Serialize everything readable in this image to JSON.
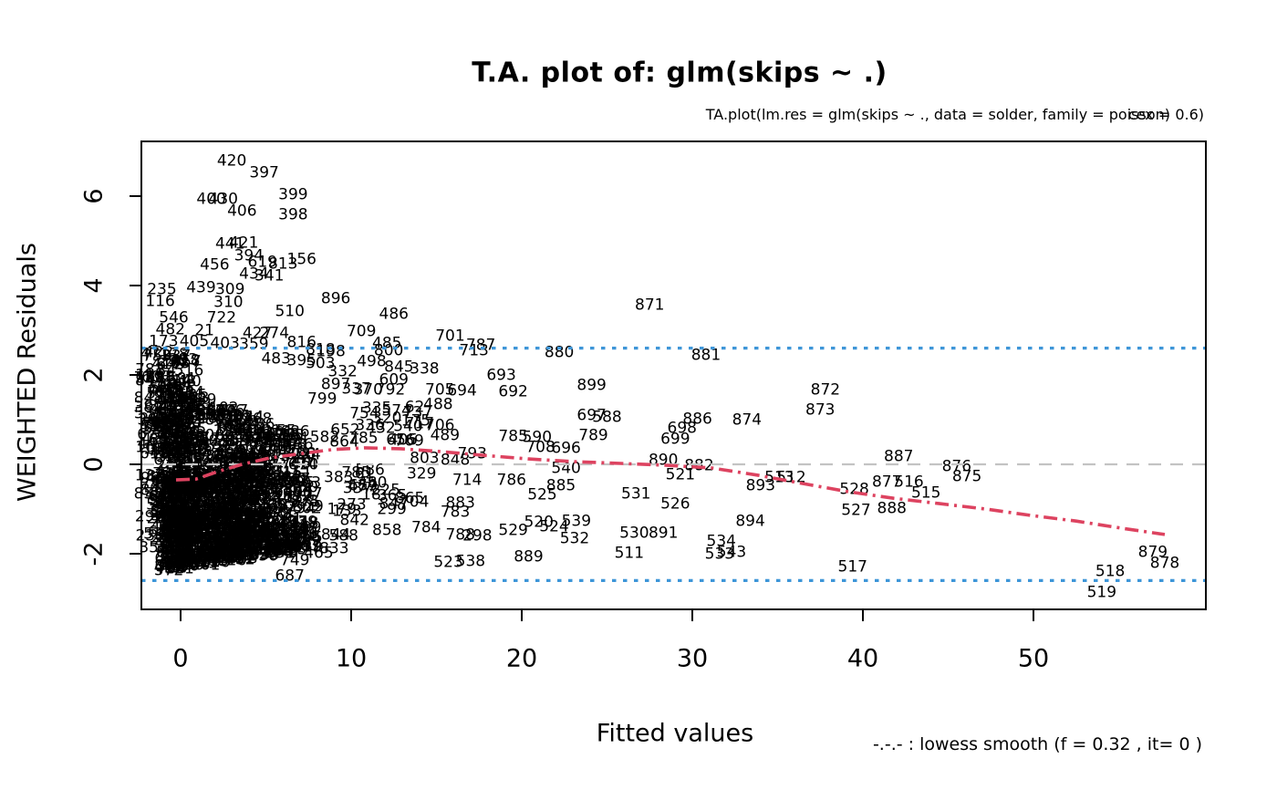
{
  "title": "T.A. plot of:  glm(skips ~ .)",
  "subtitle": {
    "main": "TA.plot(lm.res = glm(skips ~ ., data = solder, family = poisson)",
    "overlay": "cex = 0.6)"
  },
  "axes": {
    "xlabel": "Fitted values",
    "ylabel": "WEIGHTED Residuals",
    "xticks": [
      0,
      10,
      20,
      30,
      40,
      50
    ],
    "yticks": [
      -2,
      0,
      2,
      4,
      6
    ]
  },
  "legend": {
    "text": "-.-.- : lowess smooth (f = 0.32 , it= 0 )"
  },
  "colors": {
    "lowess": "#dd4360",
    "band_lines": "#3e96d8",
    "zero_line": "#c3c3c3",
    "points": "#000000"
  },
  "chart_data": {
    "type": "scatter",
    "title": "T.A. plot of:  glm(skips ~ .)",
    "xlabel": "Fitted values",
    "ylabel": "WEIGHTED Residuals",
    "xlim": [
      -2.3,
      60.2
    ],
    "ylim": [
      -3.25,
      7.25
    ],
    "reference_lines": {
      "zero": 0,
      "upper_band": 2.6,
      "lower_band": -2.6
    },
    "lowess_f": "0.32",
    "lowess_it": "0",
    "lowess": [
      [
        -0.27,
        -0.35
      ],
      [
        0.9,
        -0.33
      ],
      [
        2.2,
        -0.16
      ],
      [
        3.6,
        0.0
      ],
      [
        5.2,
        0.14
      ],
      [
        7.1,
        0.24
      ],
      [
        8.9,
        0.33
      ],
      [
        10.8,
        0.37
      ],
      [
        12.9,
        0.35
      ],
      [
        15.1,
        0.29
      ],
      [
        17.8,
        0.2
      ],
      [
        20.4,
        0.12
      ],
      [
        23.1,
        0.06
      ],
      [
        25.8,
        0.02
      ],
      [
        28.4,
        -0.02
      ],
      [
        31.1,
        -0.08
      ],
      [
        33.8,
        -0.24
      ],
      [
        36.5,
        -0.43
      ],
      [
        39.1,
        -0.61
      ],
      [
        41.8,
        -0.76
      ],
      [
        44.5,
        -0.88
      ],
      [
        47.2,
        -1.0
      ],
      [
        49.8,
        -1.14
      ],
      [
        52.5,
        -1.27
      ],
      [
        55.2,
        -1.43
      ],
      [
        57.7,
        -1.57
      ]
    ],
    "points": [
      [
        "420",
        3.0,
        6.78
      ],
      [
        "397",
        4.9,
        6.51
      ],
      [
        "399",
        6.6,
        6.02
      ],
      [
        "400",
        1.8,
        5.92
      ],
      [
        "430",
        2.5,
        5.92
      ],
      [
        "406",
        3.6,
        5.65
      ],
      [
        "398",
        6.6,
        5.57
      ],
      [
        "441",
        2.9,
        4.92
      ],
      [
        "421",
        3.7,
        4.94
      ],
      [
        "394",
        4.0,
        4.65
      ],
      [
        "456",
        2.0,
        4.45
      ],
      [
        "619",
        4.8,
        4.51
      ],
      [
        "813",
        6.0,
        4.47
      ],
      [
        "156",
        7.1,
        4.57
      ],
      [
        "434",
        4.3,
        4.24
      ],
      [
        "341",
        5.2,
        4.2
      ],
      [
        "235",
        -1.1,
        3.9
      ],
      [
        "439",
        1.2,
        3.94
      ],
      [
        "309",
        2.9,
        3.9
      ],
      [
        "116",
        -1.2,
        3.63
      ],
      [
        "310",
        2.8,
        3.61
      ],
      [
        "896",
        9.1,
        3.69
      ],
      [
        "546",
        -0.4,
        3.27
      ],
      [
        "722",
        2.4,
        3.27
      ],
      [
        "510",
        6.4,
        3.41
      ],
      [
        "486",
        12.5,
        3.35
      ],
      [
        "482",
        -0.6,
        3.0
      ],
      [
        "21",
        1.4,
        2.98
      ],
      [
        "427",
        4.5,
        2.92
      ],
      [
        "274",
        5.5,
        2.92
      ],
      [
        "173",
        -1.0,
        2.73
      ],
      [
        "405",
        0.8,
        2.73
      ],
      [
        "403",
        2.6,
        2.69
      ],
      [
        "359",
        4.3,
        2.67
      ],
      [
        "816",
        7.1,
        2.71
      ],
      [
        "709",
        10.6,
        2.96
      ],
      [
        "485",
        12.1,
        2.69
      ],
      [
        "701",
        15.8,
        2.86
      ],
      [
        "787",
        17.6,
        2.65
      ],
      [
        "713",
        17.2,
        2.53
      ],
      [
        "880",
        22.2,
        2.49
      ],
      [
        "871",
        27.5,
        3.55
      ],
      [
        "881",
        30.8,
        2.43
      ],
      [
        "818",
        8.2,
        2.55
      ],
      [
        "198",
        8.8,
        2.51
      ],
      [
        "800",
        12.2,
        2.53
      ],
      [
        "471",
        -1.5,
        2.45
      ],
      [
        "483",
        5.6,
        2.35
      ],
      [
        "395",
        7.1,
        2.31
      ],
      [
        "503",
        8.2,
        2.24
      ],
      [
        "498",
        11.2,
        2.29
      ],
      [
        "845",
        12.8,
        2.16
      ],
      [
        "338",
        14.3,
        2.12
      ],
      [
        "332",
        9.5,
        2.06
      ],
      [
        "693",
        18.8,
        1.98
      ],
      [
        "609",
        12.5,
        1.88
      ],
      [
        "897",
        9.1,
        1.78
      ],
      [
        "337",
        10.3,
        1.67
      ],
      [
        "370",
        11.0,
        1.65
      ],
      [
        "792",
        12.3,
        1.65
      ],
      [
        "705",
        15.2,
        1.65
      ],
      [
        "694",
        16.5,
        1.63
      ],
      [
        "692",
        19.5,
        1.61
      ],
      [
        "899",
        24.1,
        1.76
      ],
      [
        "872",
        37.8,
        1.65
      ],
      [
        "873",
        37.5,
        1.2
      ],
      [
        "488",
        15.1,
        1.33
      ],
      [
        "799",
        8.3,
        1.45
      ],
      [
        "697",
        24.1,
        1.08
      ],
      [
        "588",
        25.0,
        1.04
      ],
      [
        "886",
        30.3,
        1.0
      ],
      [
        "874",
        33.2,
        0.98
      ],
      [
        "698",
        29.4,
        0.8
      ],
      [
        "699",
        29.0,
        0.55
      ],
      [
        "335",
        11.5,
        1.24
      ],
      [
        "320",
        12.1,
        1.02
      ],
      [
        "336",
        11.1,
        0.86
      ],
      [
        "717",
        14.0,
        0.9
      ],
      [
        "706",
        15.2,
        0.86
      ],
      [
        "489",
        15.5,
        0.63
      ],
      [
        "769",
        13.4,
        0.51
      ],
      [
        "864",
        9.6,
        0.49
      ],
      [
        "785",
        19.5,
        0.61
      ],
      [
        "590",
        20.9,
        0.59
      ],
      [
        "789",
        24.2,
        0.63
      ],
      [
        "708",
        21.1,
        0.37
      ],
      [
        "696",
        22.6,
        0.35
      ],
      [
        "890",
        28.3,
        0.08
      ],
      [
        "882",
        30.4,
        -0.04
      ],
      [
        "521",
        29.3,
        -0.24
      ],
      [
        "887",
        42.1,
        0.16
      ],
      [
        "876",
        45.5,
        -0.06
      ],
      [
        "875",
        46.1,
        -0.29
      ],
      [
        "877",
        41.4,
        -0.41
      ],
      [
        "516",
        42.7,
        -0.41
      ],
      [
        "515",
        43.7,
        -0.65
      ],
      [
        "893",
        34.0,
        -0.49
      ],
      [
        "513",
        35.1,
        -0.31
      ],
      [
        "512",
        35.8,
        -0.31
      ],
      [
        "528",
        39.5,
        -0.57
      ],
      [
        "527",
        39.6,
        -1.04
      ],
      [
        "888",
        41.7,
        -1.0
      ],
      [
        "894",
        33.4,
        -1.29
      ],
      [
        "534",
        31.7,
        -1.73
      ],
      [
        "533",
        31.6,
        -2.02
      ],
      [
        "543",
        32.3,
        -1.98
      ],
      [
        "517",
        39.4,
        -2.31
      ],
      [
        "879",
        57.0,
        -1.98
      ],
      [
        "878",
        57.7,
        -2.22
      ],
      [
        "518",
        54.5,
        -2.41
      ],
      [
        "519",
        54.0,
        -2.88
      ],
      [
        "803",
        14.3,
        0.12
      ],
      [
        "848",
        16.1,
        0.08
      ],
      [
        "793",
        17.1,
        0.22
      ],
      [
        "540",
        22.6,
        -0.1
      ],
      [
        "714",
        16.8,
        -0.37
      ],
      [
        "786",
        19.4,
        -0.37
      ],
      [
        "885",
        22.3,
        -0.49
      ],
      [
        "525",
        21.2,
        -0.69
      ],
      [
        "531",
        26.7,
        -0.67
      ],
      [
        "526",
        29.0,
        -0.9
      ],
      [
        "704",
        13.7,
        -0.86
      ],
      [
        "883",
        16.4,
        -0.88
      ],
      [
        "783",
        16.1,
        -1.08
      ],
      [
        "784",
        14.4,
        -1.43
      ],
      [
        "788",
        16.4,
        -1.59
      ],
      [
        "298",
        17.4,
        -1.61
      ],
      [
        "529",
        19.5,
        -1.49
      ],
      [
        "520",
        21.0,
        -1.31
      ],
      [
        "524",
        21.9,
        -1.41
      ],
      [
        "539",
        23.2,
        -1.29
      ],
      [
        "532",
        23.1,
        -1.67
      ],
      [
        "889",
        20.4,
        -2.08
      ],
      [
        "511",
        26.3,
        -2.0
      ],
      [
        "530",
        26.6,
        -1.55
      ],
      [
        "891",
        28.3,
        -1.55
      ],
      [
        "523",
        15.7,
        -2.2
      ],
      [
        "538",
        17.0,
        -2.18
      ],
      [
        "847",
        12.5,
        -0.9
      ],
      [
        "842",
        10.2,
        -1.27
      ],
      [
        "858",
        12.1,
        -1.49
      ],
      [
        "844",
        9.1,
        -1.59
      ],
      [
        "833",
        9.0,
        -1.9
      ],
      [
        "465",
        8.1,
        -2.0
      ],
      [
        "749",
        6.7,
        -2.16
      ],
      [
        "687",
        6.4,
        -2.51
      ],
      [
        "115",
        -1.8,
        1.98
      ]
    ],
    "dense_cluster": {
      "description": "Unreadable overplotted case-number labels for low fitted values (x < ~10), rendered as a solid black mass in the source plot",
      "seed": 7,
      "label_min": 1,
      "label_max": 900,
      "parts": [
        {
          "type": "fan",
          "count": 560,
          "x_min": -0.7,
          "x_span": 8.3,
          "x_pow": 1.4,
          "y_top_a": 1.7,
          "y_top_b": -0.145,
          "y_bot_a": -2.35,
          "y_bot_b": 0.06,
          "y_pow": 1.3
        },
        {
          "type": "fan",
          "count": 200,
          "x_min": -0.5,
          "x_span": 5.5,
          "x_pow": 1.2,
          "y_top_a": -0.25,
          "y_top_b": 0.0,
          "y_bot_a": -2.25,
          "y_bot_b": 0.05,
          "y_pow": 1.0
        },
        {
          "type": "box",
          "count": 150,
          "x_min": -1.9,
          "x_span": 2.4,
          "y_min": -1.9,
          "y_span": 4.4,
          "y_pow": 0.9
        },
        {
          "type": "box",
          "count": 30,
          "x_min": 8.0,
          "x_span": 6.5,
          "y_min": -1.7,
          "y_span": 3.2,
          "y_pow": 1.0
        }
      ]
    }
  }
}
